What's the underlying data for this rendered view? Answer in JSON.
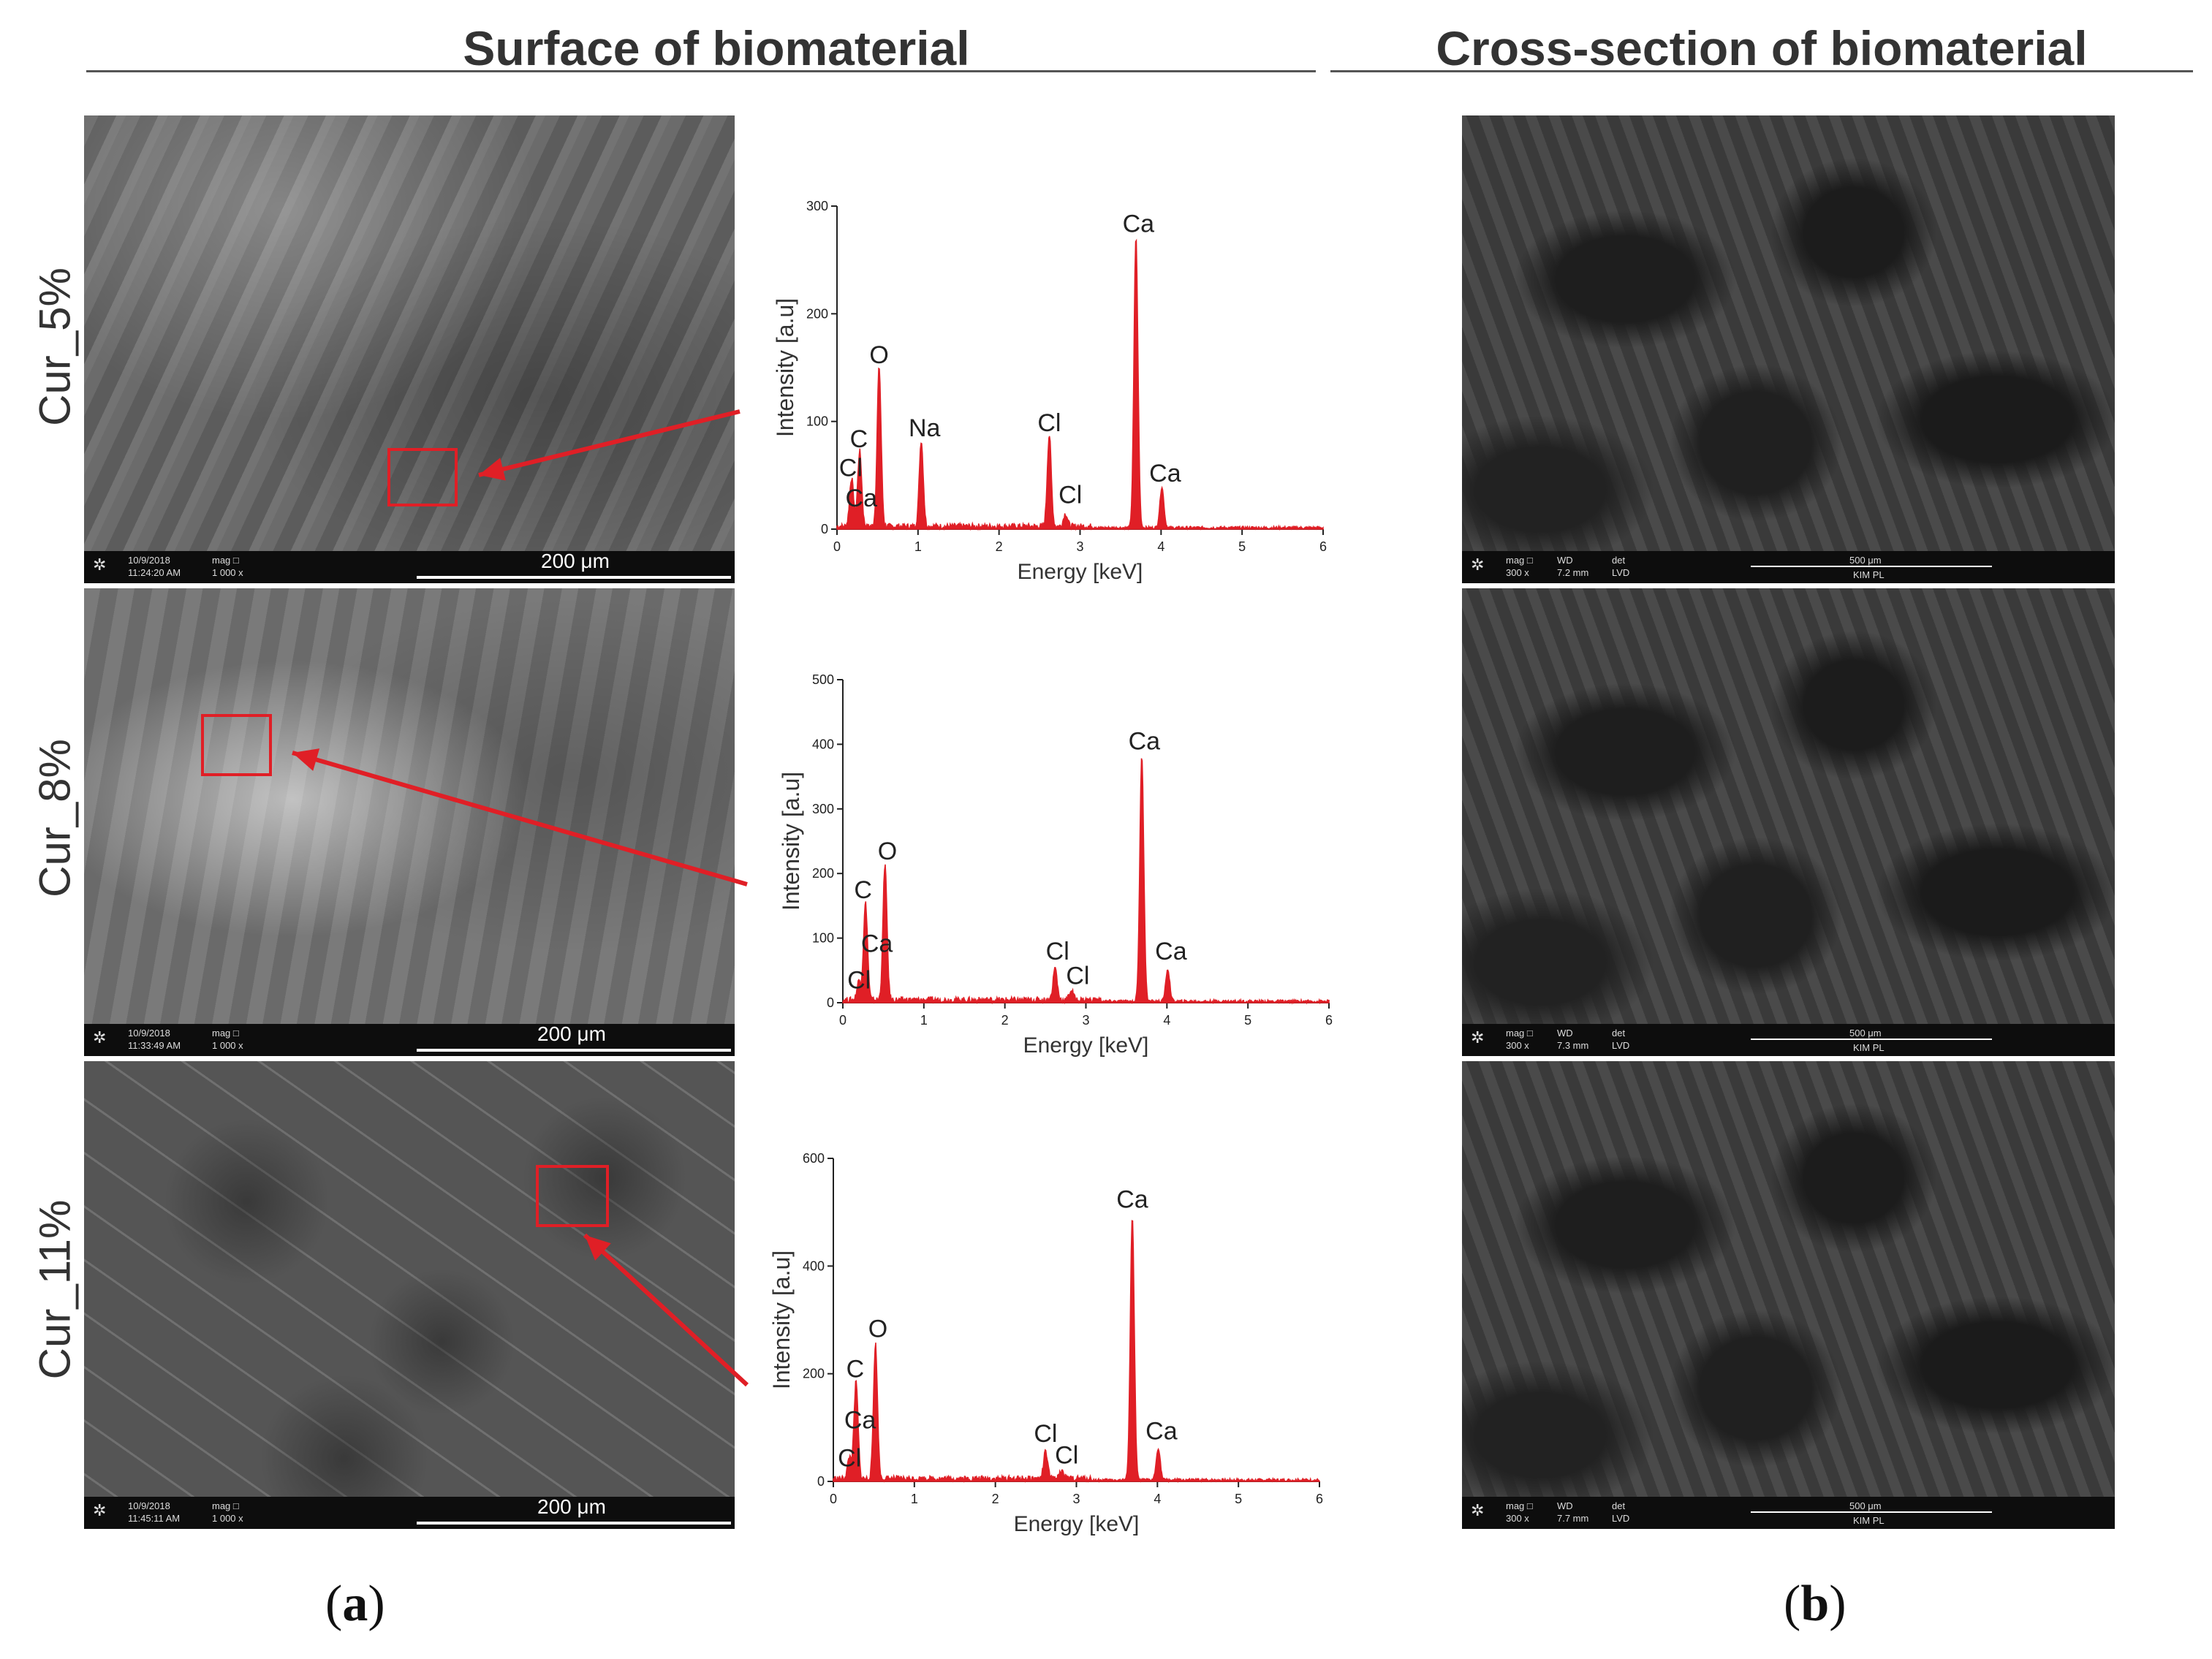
{
  "titles": {
    "surface": "Surface of biomaterial",
    "cross": "Cross-section of biomaterial"
  },
  "fig_letters": {
    "a": "a",
    "b": "b"
  },
  "rows": [
    {
      "label": "Cur_5%",
      "surface_bar": {
        "date": "10/9/2018",
        "time": "11:24:20 AM",
        "mag_head": "mag □",
        "mag": "1 000 x",
        "scale": "200 μm"
      },
      "cross_bar": {
        "mag_head": "mag □",
        "mag": "300 x",
        "wd_head": "WD",
        "wd": "7.2 mm",
        "det_head": "det",
        "det": "LVD",
        "scale": "500 μm",
        "lab": "KIM PL"
      }
    },
    {
      "label": "Cur_8%",
      "surface_bar": {
        "date": "10/9/2018",
        "time": "11:33:49 AM",
        "mag_head": "mag □",
        "mag": "1 000 x",
        "scale": "200 μm"
      },
      "cross_bar": {
        "mag_head": "mag □",
        "mag": "300 x",
        "wd_head": "WD",
        "wd": "7.3 mm",
        "det_head": "det",
        "det": "LVD",
        "scale": "500 μm",
        "lab": "KIM PL"
      }
    },
    {
      "label": "Cur_11%",
      "surface_bar": {
        "date": "10/9/2018",
        "time": "11:45:11 AM",
        "mag_head": "mag □",
        "mag": "1 000 x",
        "scale": "200 μm"
      },
      "cross_bar": {
        "mag_head": "mag □",
        "mag": "300 x",
        "wd_head": "WD",
        "wd": "7.7 mm",
        "det_head": "det",
        "det": "LVD",
        "scale": "500 μm",
        "lab": "KIM PL"
      }
    }
  ],
  "colors": {
    "spectrum": "#e01f26",
    "roi": "#e01f26"
  },
  "chart_data": [
    {
      "type": "line",
      "xlabel": "Energy [keV]",
      "ylabel": "Intensity [a.u]",
      "xlim": [
        0,
        6
      ],
      "ylim": [
        0,
        300
      ],
      "xticks": [
        "0",
        "1",
        "2",
        "3",
        "4",
        "5",
        "6"
      ],
      "yticks": [
        "0",
        "100",
        "200",
        "300"
      ],
      "peaks": [
        {
          "x": 0.18,
          "y": 45
        },
        {
          "x": 0.28,
          "y": 70
        },
        {
          "x": 0.52,
          "y": 148
        },
        {
          "x": 1.04,
          "y": 80
        },
        {
          "x": 2.62,
          "y": 85
        },
        {
          "x": 2.82,
          "y": 12
        },
        {
          "x": 3.69,
          "y": 270
        },
        {
          "x": 4.01,
          "y": 38
        }
      ],
      "annotations": [
        {
          "text": "C",
          "x": 0.27,
          "y": 72
        },
        {
          "text": "Cl",
          "x": 0.17,
          "y": 45
        },
        {
          "text": "Ca",
          "x": 0.3,
          "y": 17
        },
        {
          "text": "O",
          "x": 0.52,
          "y": 150
        },
        {
          "text": "Na",
          "x": 1.08,
          "y": 82
        },
        {
          "text": "Cl",
          "x": 2.62,
          "y": 87
        },
        {
          "text": "Cl",
          "x": 2.88,
          "y": 20
        },
        {
          "text": "Ca",
          "x": 3.72,
          "y": 272
        },
        {
          "text": "Ca",
          "x": 4.05,
          "y": 40
        }
      ]
    },
    {
      "type": "line",
      "xlabel": "Energy [keV]",
      "ylabel": "Intensity [a.u]",
      "xlim": [
        0,
        6
      ],
      "ylim": [
        0,
        500
      ],
      "xticks": [
        "0",
        "1",
        "2",
        "3",
        "4",
        "5",
        "6"
      ],
      "yticks": [
        "0",
        "100",
        "200",
        "300",
        "400",
        "500"
      ],
      "peaks": [
        {
          "x": 0.2,
          "y": 30
        },
        {
          "x": 0.28,
          "y": 150
        },
        {
          "x": 0.52,
          "y": 210
        },
        {
          "x": 2.62,
          "y": 50
        },
        {
          "x": 2.82,
          "y": 15
        },
        {
          "x": 3.69,
          "y": 380
        },
        {
          "x": 4.01,
          "y": 50
        }
      ],
      "annotations": [
        {
          "text": "C",
          "x": 0.25,
          "y": 155
        },
        {
          "text": "Ca",
          "x": 0.42,
          "y": 72
        },
        {
          "text": "Cl",
          "x": 0.2,
          "y": 15
        },
        {
          "text": "O",
          "x": 0.55,
          "y": 215
        },
        {
          "text": "Cl",
          "x": 2.65,
          "y": 60
        },
        {
          "text": "Cl",
          "x": 2.9,
          "y": 22
        },
        {
          "text": "Ca",
          "x": 3.72,
          "y": 385
        },
        {
          "text": "Ca",
          "x": 4.05,
          "y": 60
        }
      ]
    },
    {
      "type": "line",
      "xlabel": "Energy [keV]",
      "ylabel": "Intensity [a.u]",
      "xlim": [
        0,
        6
      ],
      "ylim": [
        0,
        600
      ],
      "xticks": [
        "0",
        "1",
        "2",
        "3",
        "4",
        "5",
        "6"
      ],
      "yticks": [
        "0",
        "200",
        "400",
        "600"
      ],
      "peaks": [
        {
          "x": 0.2,
          "y": 40
        },
        {
          "x": 0.28,
          "y": 180
        },
        {
          "x": 0.52,
          "y": 250
        },
        {
          "x": 2.62,
          "y": 50
        },
        {
          "x": 2.82,
          "y": 15
        },
        {
          "x": 3.69,
          "y": 490
        },
        {
          "x": 4.01,
          "y": 60
        }
      ],
      "annotations": [
        {
          "text": "C",
          "x": 0.27,
          "y": 185
        },
        {
          "text": "Ca",
          "x": 0.33,
          "y": 90
        },
        {
          "text": "Cl",
          "x": 0.2,
          "y": 20
        },
        {
          "text": "O",
          "x": 0.55,
          "y": 260
        },
        {
          "text": "Cl",
          "x": 2.62,
          "y": 65
        },
        {
          "text": "Cl",
          "x": 2.88,
          "y": 25
        },
        {
          "text": "Ca",
          "x": 3.69,
          "y": 500
        },
        {
          "text": "Ca",
          "x": 4.05,
          "y": 70
        }
      ]
    }
  ]
}
